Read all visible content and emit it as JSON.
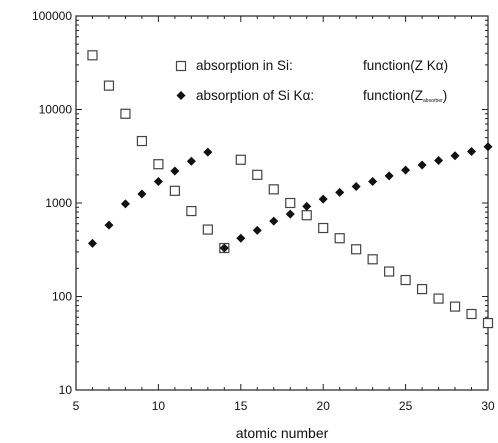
{
  "chart_data": {
    "type": "scatter",
    "title": "",
    "xlabel": "atomic number",
    "ylabel": "",
    "xlim": [
      5,
      30
    ],
    "ylim": [
      10,
      100000
    ],
    "yscale": "log",
    "grid": false,
    "legend_position": "top-right",
    "x_ticks": [
      5,
      10,
      15,
      20,
      25,
      30
    ],
    "x_tick_labels": [
      "5",
      "10",
      "15",
      "20",
      "25",
      "30"
    ],
    "y_ticks": [
      10,
      100,
      1000,
      10000,
      100000
    ],
    "y_tick_labels": [
      "10",
      "100",
      "1000",
      "10000",
      "100000"
    ],
    "series": [
      {
        "name": "absorption in Si:",
        "legend_function": "function(Z Kα)",
        "marker": "open-square",
        "color": "#444444",
        "points": [
          [
            6,
            38000
          ],
          [
            7,
            18000
          ],
          [
            8,
            9000
          ],
          [
            9,
            4600
          ],
          [
            10,
            2600
          ],
          [
            11,
            1350
          ],
          [
            12,
            820
          ],
          [
            13,
            520
          ],
          [
            14,
            330
          ],
          [
            15,
            2900
          ],
          [
            16,
            2000
          ],
          [
            17,
            1400
          ],
          [
            18,
            1000
          ],
          [
            19,
            740
          ],
          [
            20,
            540
          ],
          [
            21,
            420
          ],
          [
            22,
            320
          ],
          [
            23,
            250
          ],
          [
            24,
            185
          ],
          [
            25,
            150
          ],
          [
            26,
            120
          ],
          [
            27,
            95
          ],
          [
            28,
            78
          ],
          [
            29,
            65
          ],
          [
            30,
            52
          ]
        ]
      },
      {
        "name": "absorption of Si Kα:",
        "legend_function": "function(Z",
        "legend_function_sub": "absorber",
        "legend_function_end": ")",
        "marker": "filled-diamond",
        "color": "#111111",
        "points": [
          [
            6,
            370
          ],
          [
            7,
            580
          ],
          [
            8,
            980
          ],
          [
            9,
            1250
          ],
          [
            10,
            1700
          ],
          [
            11,
            2200
          ],
          [
            12,
            2800
          ],
          [
            13,
            3500
          ],
          [
            14,
            330
          ],
          [
            15,
            420
          ],
          [
            16,
            510
          ],
          [
            17,
            640
          ],
          [
            18,
            760
          ],
          [
            19,
            920
          ],
          [
            20,
            1100
          ],
          [
            21,
            1300
          ],
          [
            22,
            1500
          ],
          [
            23,
            1700
          ],
          [
            24,
            1950
          ],
          [
            25,
            2250
          ],
          [
            26,
            2550
          ],
          [
            27,
            2850
          ],
          [
            28,
            3200
          ],
          [
            29,
            3550
          ],
          [
            30,
            4000
          ]
        ]
      }
    ]
  }
}
